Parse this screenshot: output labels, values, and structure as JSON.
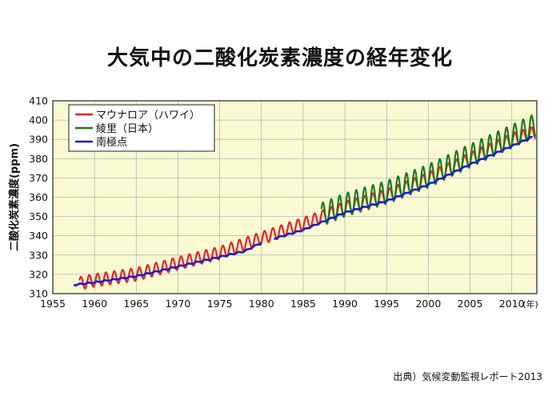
{
  "title": "大気中の二酸化炭素濃度の経年変化",
  "source": "出典）気候変動監視レポート2013",
  "chart_data": {
    "type": "line",
    "title": "大気中の二酸化炭素濃度の経年変化",
    "ylabel": "二酸化炭素濃度(ppm)",
    "xlabel": "",
    "x_unit_label": "(年)",
    "xlim": [
      1955,
      2013
    ],
    "ylim": [
      310,
      410
    ],
    "x_ticks": [
      1955,
      1960,
      1965,
      1970,
      1975,
      1980,
      1985,
      1990,
      1995,
      2000,
      2005,
      2010
    ],
    "y_ticks": [
      310,
      320,
      330,
      340,
      350,
      360,
      370,
      380,
      390,
      400,
      410
    ],
    "grid": true,
    "legend": "top-left",
    "plot_background": "#fafad2",
    "series": [
      {
        "name": "マウナロア（ハワイ）",
        "color": "#e8231f",
        "style": "seasonal",
        "x": [
          1958.2,
          1960,
          1965,
          1970,
          1975,
          1980,
          1985,
          1990,
          1995,
          2000,
          2005,
          2010,
          2012.9
        ],
        "values": [
          315.3,
          316.9,
          320.0,
          325.7,
          331.1,
          338.7,
          346.1,
          354.4,
          360.8,
          369.5,
          379.8,
          389.8,
          393.8
        ],
        "seasonal_amplitude_ppm": 3.3
      },
      {
        "name": "綾里（日本）",
        "color": "#1f7a1f",
        "style": "seasonal",
        "x": [
          1987.2,
          1990,
          1995,
          2000,
          2005,
          2010,
          2012.9
        ],
        "values": [
          351.0,
          356.0,
          362.5,
          371.0,
          381.5,
          391.5,
          397.5
        ],
        "seasonal_amplitude_ppm": 6.0
      },
      {
        "name": "南極点",
        "color": "#1c1cd6",
        "style": "smooth",
        "segments": [
          {
            "x": [
              1957.5,
              1960,
              1965,
              1970,
              1975,
              1978
            ],
            "values": [
              314.5,
              315.8,
              319.0,
              324.0,
              329.0,
              332.0
            ]
          },
          {
            "x": [
              1978,
              1980
            ],
            "values": [
              332.0,
              336.5
            ]
          },
          {
            "x": [
              1981.5,
              1985,
              1990,
              1995,
              2000,
              2005,
              2010,
              2012.6
            ],
            "values": [
              338.5,
              343.0,
              352.0,
              358.0,
              366.5,
              377.0,
              386.5,
              391.5
            ]
          }
        ]
      }
    ]
  }
}
